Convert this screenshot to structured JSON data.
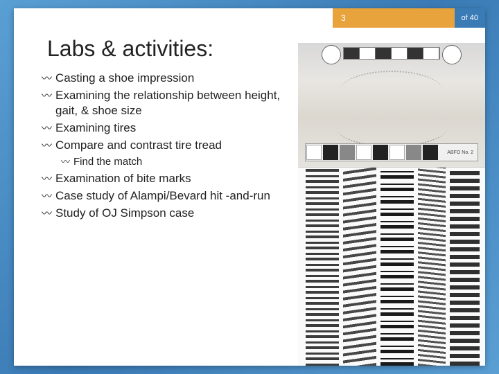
{
  "header": {
    "page_num": "3",
    "page_total": "of 40"
  },
  "title": "Labs & activities:",
  "bullets": [
    {
      "text": "Casting a shoe impression",
      "level": 0
    },
    {
      "text": "Examining the relationship between height, gait, & shoe size",
      "level": 0
    },
    {
      "text": "Examining tires",
      "level": 0
    },
    {
      "text": "Compare and contrast tire tread",
      "level": 0
    },
    {
      "text": "Find the match",
      "level": 1
    },
    {
      "text": "Examination of bite marks",
      "level": 0
    },
    {
      "text": "Case study of Alampi/Bevard hit -and-run",
      "level": 0
    },
    {
      "text": "Study of OJ Simpson case",
      "level": 0
    }
  ],
  "ruler_label": "ABFO No. 2",
  "colors": {
    "bg_gradient_start": "#5a9fd4",
    "bg_gradient_end": "#3a7ab5",
    "header_orange": "#e8a33d",
    "header_blue": "#3a7ab5",
    "text": "#222222"
  }
}
